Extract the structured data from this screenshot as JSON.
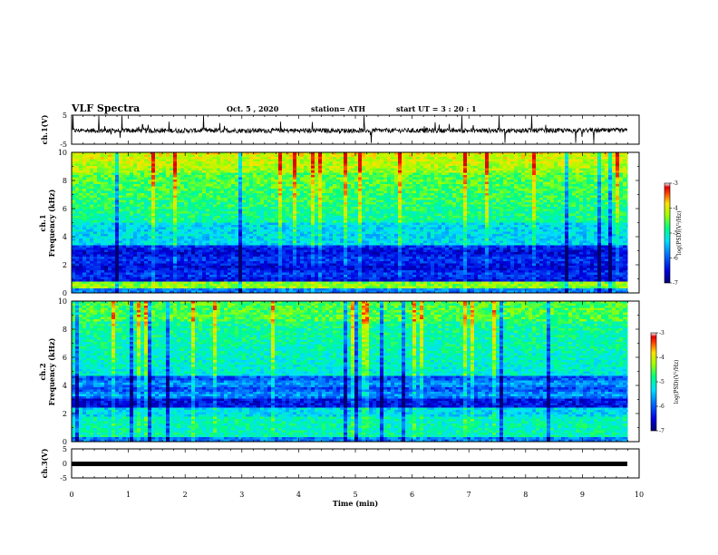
{
  "header": {
    "title": "VLF Spectra",
    "date": "Oct. 5  , 2020",
    "station": "station= ATH",
    "start": "start  UT  =   3  : 20 : 1"
  },
  "chart_data": [
    {
      "type": "line",
      "name": "ch1-waveform",
      "ylabel": "ch.1(V)",
      "ylim": [
        -5,
        5
      ],
      "ytick_labels": [
        "5",
        "-5"
      ],
      "xlim": [
        0,
        10
      ]
    },
    {
      "type": "heatmap",
      "name": "ch1-spectrogram",
      "ylabel_line1": "ch.1",
      "ylabel_line2": "Frequency  (kHz)",
      "ylim": [
        0,
        10
      ],
      "ytick_labels": [
        "0",
        "2",
        "4",
        "6",
        "8",
        "10"
      ],
      "xlim": [
        0,
        9.8
      ],
      "colorbar": {
        "label": "log(PSD)(V²/Hz)",
        "range": [
          -7,
          -3
        ],
        "tick_labels": [
          "-3",
          "-4",
          "-5",
          "-6",
          "-7"
        ]
      }
    },
    {
      "type": "heatmap",
      "name": "ch2-spectrogram",
      "ylabel_line1": "ch.2",
      "ylabel_line2": "Frequency  (kHz)",
      "ylim": [
        0,
        10
      ],
      "ytick_labels": [
        "0",
        "2",
        "4",
        "6",
        "8",
        "10"
      ],
      "xlim": [
        0,
        9.8
      ],
      "colorbar": {
        "label": "log(PSD)(V²/Hz)",
        "range": [
          -7,
          -3
        ],
        "tick_labels": [
          "-3",
          "-4",
          "-5",
          "-6",
          "-7"
        ]
      }
    },
    {
      "type": "line",
      "name": "ch3-waveform",
      "ylabel": "ch.3(V)",
      "ylim": [
        -5,
        5
      ],
      "ytick_labels": [
        "5",
        "0",
        "-5"
      ],
      "level": 0,
      "xlim": [
        0,
        9.8
      ]
    }
  ],
  "xaxis": {
    "label": "Time  (min)",
    "range": [
      0,
      10
    ],
    "tick_labels": [
      "0",
      "1",
      "2",
      "3",
      "4",
      "5",
      "6",
      "7",
      "8",
      "9",
      "10"
    ]
  }
}
